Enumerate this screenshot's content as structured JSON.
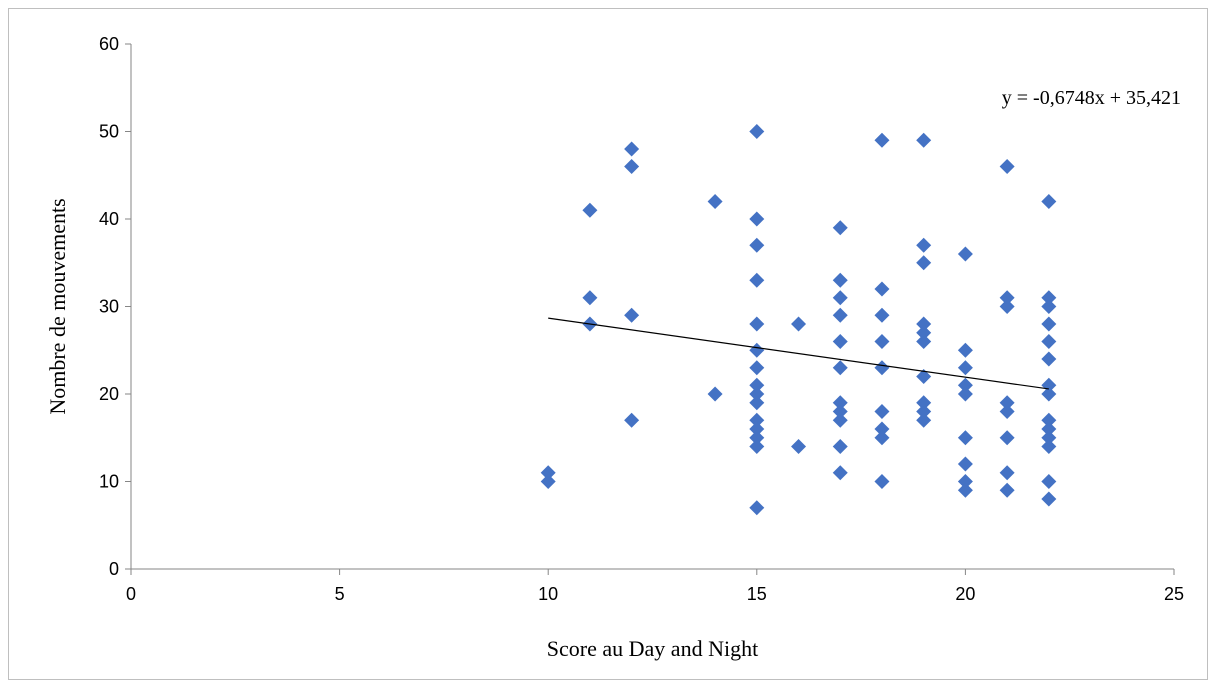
{
  "chart_data": {
    "type": "scatter",
    "title": "",
    "xlabel": "Score au Day and Night",
    "ylabel": "Nombre de mouvements",
    "xlim": [
      0,
      25
    ],
    "ylim": [
      0,
      60
    ],
    "x_ticks": [
      0,
      5,
      10,
      15,
      20,
      25
    ],
    "y_ticks": [
      0,
      10,
      20,
      30,
      40,
      50,
      60
    ],
    "x_tick_labels": [
      "0",
      "5",
      "10",
      "15",
      "20",
      "25"
    ],
    "y_tick_labels": [
      "0",
      "10",
      "20",
      "30",
      "40",
      "50",
      "60"
    ],
    "grid": false,
    "legend": "none",
    "marker": "diamond",
    "marker_color": "#4472C4",
    "trendline_color": "#000000",
    "trendline": {
      "equation": "y = -0,6748x + 35,421",
      "slope": -0.6748,
      "intercept": 35.421,
      "x_range": [
        10,
        22
      ]
    },
    "series": [
      {
        "points": [
          [
            10,
            11
          ],
          [
            10,
            10
          ],
          [
            11,
            41
          ],
          [
            11,
            31
          ],
          [
            11,
            28
          ],
          [
            12,
            48
          ],
          [
            12,
            46
          ],
          [
            12,
            29
          ],
          [
            12,
            17
          ],
          [
            14,
            42
          ],
          [
            14,
            20
          ],
          [
            15,
            50
          ],
          [
            15,
            40
          ],
          [
            15,
            37
          ],
          [
            15,
            33
          ],
          [
            15,
            28
          ],
          [
            15,
            25
          ],
          [
            15,
            23
          ],
          [
            15,
            21
          ],
          [
            15,
            20
          ],
          [
            15,
            19
          ],
          [
            15,
            17
          ],
          [
            15,
            16
          ],
          [
            15,
            15
          ],
          [
            15,
            14
          ],
          [
            15,
            7
          ],
          [
            16,
            28
          ],
          [
            16,
            14
          ],
          [
            17,
            39
          ],
          [
            17,
            33
          ],
          [
            17,
            31
          ],
          [
            17,
            29
          ],
          [
            17,
            26
          ],
          [
            17,
            23
          ],
          [
            17,
            19
          ],
          [
            17,
            18
          ],
          [
            17,
            17
          ],
          [
            17,
            14
          ],
          [
            17,
            11
          ],
          [
            18,
            49
          ],
          [
            18,
            32
          ],
          [
            18,
            29
          ],
          [
            18,
            26
          ],
          [
            18,
            23
          ],
          [
            18,
            18
          ],
          [
            18,
            16
          ],
          [
            18,
            15
          ],
          [
            18,
            10
          ],
          [
            19,
            49
          ],
          [
            19,
            37
          ],
          [
            19,
            35
          ],
          [
            19,
            28
          ],
          [
            19,
            27
          ],
          [
            19,
            26
          ],
          [
            19,
            22
          ],
          [
            19,
            19
          ],
          [
            19,
            18
          ],
          [
            19,
            17
          ],
          [
            20,
            36
          ],
          [
            20,
            25
          ],
          [
            20,
            23
          ],
          [
            20,
            21
          ],
          [
            20,
            20
          ],
          [
            20,
            15
          ],
          [
            20,
            12
          ],
          [
            20,
            10
          ],
          [
            20,
            9
          ],
          [
            21,
            46
          ],
          [
            21,
            31
          ],
          [
            21,
            30
          ],
          [
            21,
            19
          ],
          [
            21,
            18
          ],
          [
            21,
            15
          ],
          [
            21,
            11
          ],
          [
            21,
            9
          ],
          [
            22,
            42
          ],
          [
            22,
            31
          ],
          [
            22,
            30
          ],
          [
            22,
            28
          ],
          [
            22,
            26
          ],
          [
            22,
            24
          ],
          [
            22,
            21
          ],
          [
            22,
            20
          ],
          [
            22,
            17
          ],
          [
            22,
            16
          ],
          [
            22,
            15
          ],
          [
            22,
            14
          ],
          [
            22,
            10
          ],
          [
            22,
            8
          ]
        ]
      }
    ]
  }
}
